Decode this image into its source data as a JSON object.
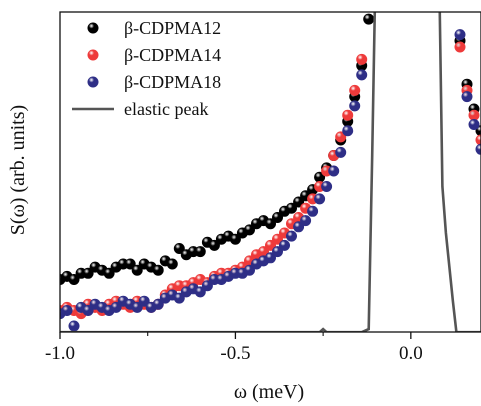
{
  "chart_data": {
    "type": "scatter",
    "xlabel": "ω (meV)",
    "ylabel": "S(ω) (arb. units)",
    "xlim": [
      -1.0,
      0.2
    ],
    "ylim": [
      0,
      1
    ],
    "xticks": [
      -1.0,
      -0.5,
      0.0
    ],
    "xtick_labels": [
      "-1.0",
      "-0.5",
      "0.0"
    ],
    "yticks": [],
    "grid": false,
    "legend_position": "top-left",
    "series": [
      {
        "name": "β-CDPMA12",
        "kind": "scatter",
        "color": "#000000",
        "x": [
          -1.0,
          -0.98,
          -0.96,
          -0.94,
          -0.92,
          -0.9,
          -0.88,
          -0.86,
          -0.84,
          -0.82,
          -0.8,
          -0.78,
          -0.76,
          -0.74,
          -0.72,
          -0.7,
          -0.68,
          -0.66,
          -0.64,
          -0.62,
          -0.6,
          -0.58,
          -0.56,
          -0.54,
          -0.52,
          -0.5,
          -0.48,
          -0.46,
          -0.44,
          -0.42,
          -0.4,
          -0.38,
          -0.36,
          -0.34,
          -0.32,
          -0.3,
          -0.28,
          -0.26,
          -0.24,
          -0.22,
          -0.2,
          -0.18,
          -0.16,
          -0.14,
          -0.12,
          0.14,
          0.16,
          0.18,
          0.2
        ],
        "y": [
          0.15,
          0.16,
          0.15,
          0.17,
          0.17,
          0.19,
          0.18,
          0.17,
          0.19,
          0.2,
          0.2,
          0.18,
          0.2,
          0.19,
          0.18,
          0.21,
          0.2,
          0.25,
          0.23,
          0.24,
          0.24,
          0.27,
          0.26,
          0.28,
          0.29,
          0.28,
          0.3,
          0.31,
          0.33,
          0.34,
          0.33,
          0.35,
          0.37,
          0.38,
          0.4,
          0.42,
          0.44,
          0.48,
          0.51,
          0.55,
          0.6,
          0.66,
          0.74,
          0.84,
          0.99,
          0.92,
          0.78,
          0.7,
          0.63
        ]
      },
      {
        "name": "β-CDPMA14",
        "kind": "scatter",
        "color": "#ee3a3a",
        "x": [
          -1.0,
          -0.98,
          -0.96,
          -0.94,
          -0.92,
          -0.9,
          -0.88,
          -0.86,
          -0.84,
          -0.82,
          -0.8,
          -0.78,
          -0.76,
          -0.74,
          -0.72,
          -0.7,
          -0.68,
          -0.66,
          -0.64,
          -0.62,
          -0.6,
          -0.58,
          -0.56,
          -0.54,
          -0.52,
          -0.5,
          -0.48,
          -0.46,
          -0.44,
          -0.42,
          -0.4,
          -0.38,
          -0.36,
          -0.34,
          -0.32,
          -0.3,
          -0.28,
          -0.26,
          -0.24,
          -0.22,
          -0.2,
          -0.18,
          -0.16,
          -0.14,
          0.14,
          0.16,
          0.18,
          0.2
        ],
        "y": [
          0.05,
          0.06,
          0.05,
          0.04,
          0.07,
          0.06,
          0.05,
          0.07,
          0.08,
          0.07,
          0.06,
          0.08,
          0.07,
          0.06,
          0.07,
          0.1,
          0.12,
          0.13,
          0.13,
          0.14,
          0.15,
          0.14,
          0.16,
          0.17,
          0.17,
          0.18,
          0.19,
          0.21,
          0.23,
          0.24,
          0.26,
          0.28,
          0.3,
          0.33,
          0.35,
          0.38,
          0.41,
          0.45,
          0.5,
          0.55,
          0.61,
          0.68,
          0.76,
          0.86,
          0.9,
          0.76,
          0.68,
          0.6
        ]
      },
      {
        "name": "β-CDPMA18",
        "kind": "scatter",
        "color": "#2e2e86",
        "x": [
          -1.0,
          -0.98,
          -0.96,
          -0.94,
          -0.92,
          -0.9,
          -0.88,
          -0.86,
          -0.84,
          -0.82,
          -0.8,
          -0.78,
          -0.76,
          -0.74,
          -0.72,
          -0.7,
          -0.68,
          -0.66,
          -0.64,
          -0.62,
          -0.6,
          -0.58,
          -0.56,
          -0.54,
          -0.52,
          -0.5,
          -0.48,
          -0.46,
          -0.44,
          -0.42,
          -0.4,
          -0.38,
          -0.36,
          -0.34,
          -0.32,
          -0.3,
          -0.28,
          -0.26,
          -0.24,
          -0.22,
          -0.2,
          -0.18,
          -0.16,
          -0.14,
          0.14,
          0.16,
          0.18,
          0.2
        ],
        "y": [
          0.04,
          0.05,
          0.0,
          0.06,
          0.05,
          0.07,
          0.06,
          0.05,
          0.06,
          0.08,
          0.07,
          0.06,
          0.08,
          0.06,
          0.07,
          0.09,
          0.1,
          0.09,
          0.11,
          0.12,
          0.11,
          0.13,
          0.15,
          0.15,
          0.16,
          0.17,
          0.17,
          0.18,
          0.2,
          0.21,
          0.22,
          0.24,
          0.26,
          0.29,
          0.32,
          0.34,
          0.37,
          0.41,
          0.45,
          0.5,
          0.56,
          0.63,
          0.71,
          0.81,
          0.94,
          0.74,
          0.65,
          0.57
        ]
      },
      {
        "name": "elastic peak",
        "kind": "line",
        "color": "#555555",
        "x": [
          -1.0,
          -0.3,
          -0.26,
          -0.25,
          -0.24,
          -0.22,
          -0.14,
          -0.12,
          -0.11,
          -0.1,
          0.08,
          0.09,
          0.1,
          0.12,
          0.13,
          0.2
        ],
        "y": [
          -0.02,
          -0.02,
          -0.02,
          -0.01,
          -0.02,
          -0.02,
          -0.02,
          -0.01,
          0.55,
          1.2,
          1.2,
          0.45,
          0.3,
          0.08,
          -0.02,
          -0.02
        ]
      }
    ]
  }
}
